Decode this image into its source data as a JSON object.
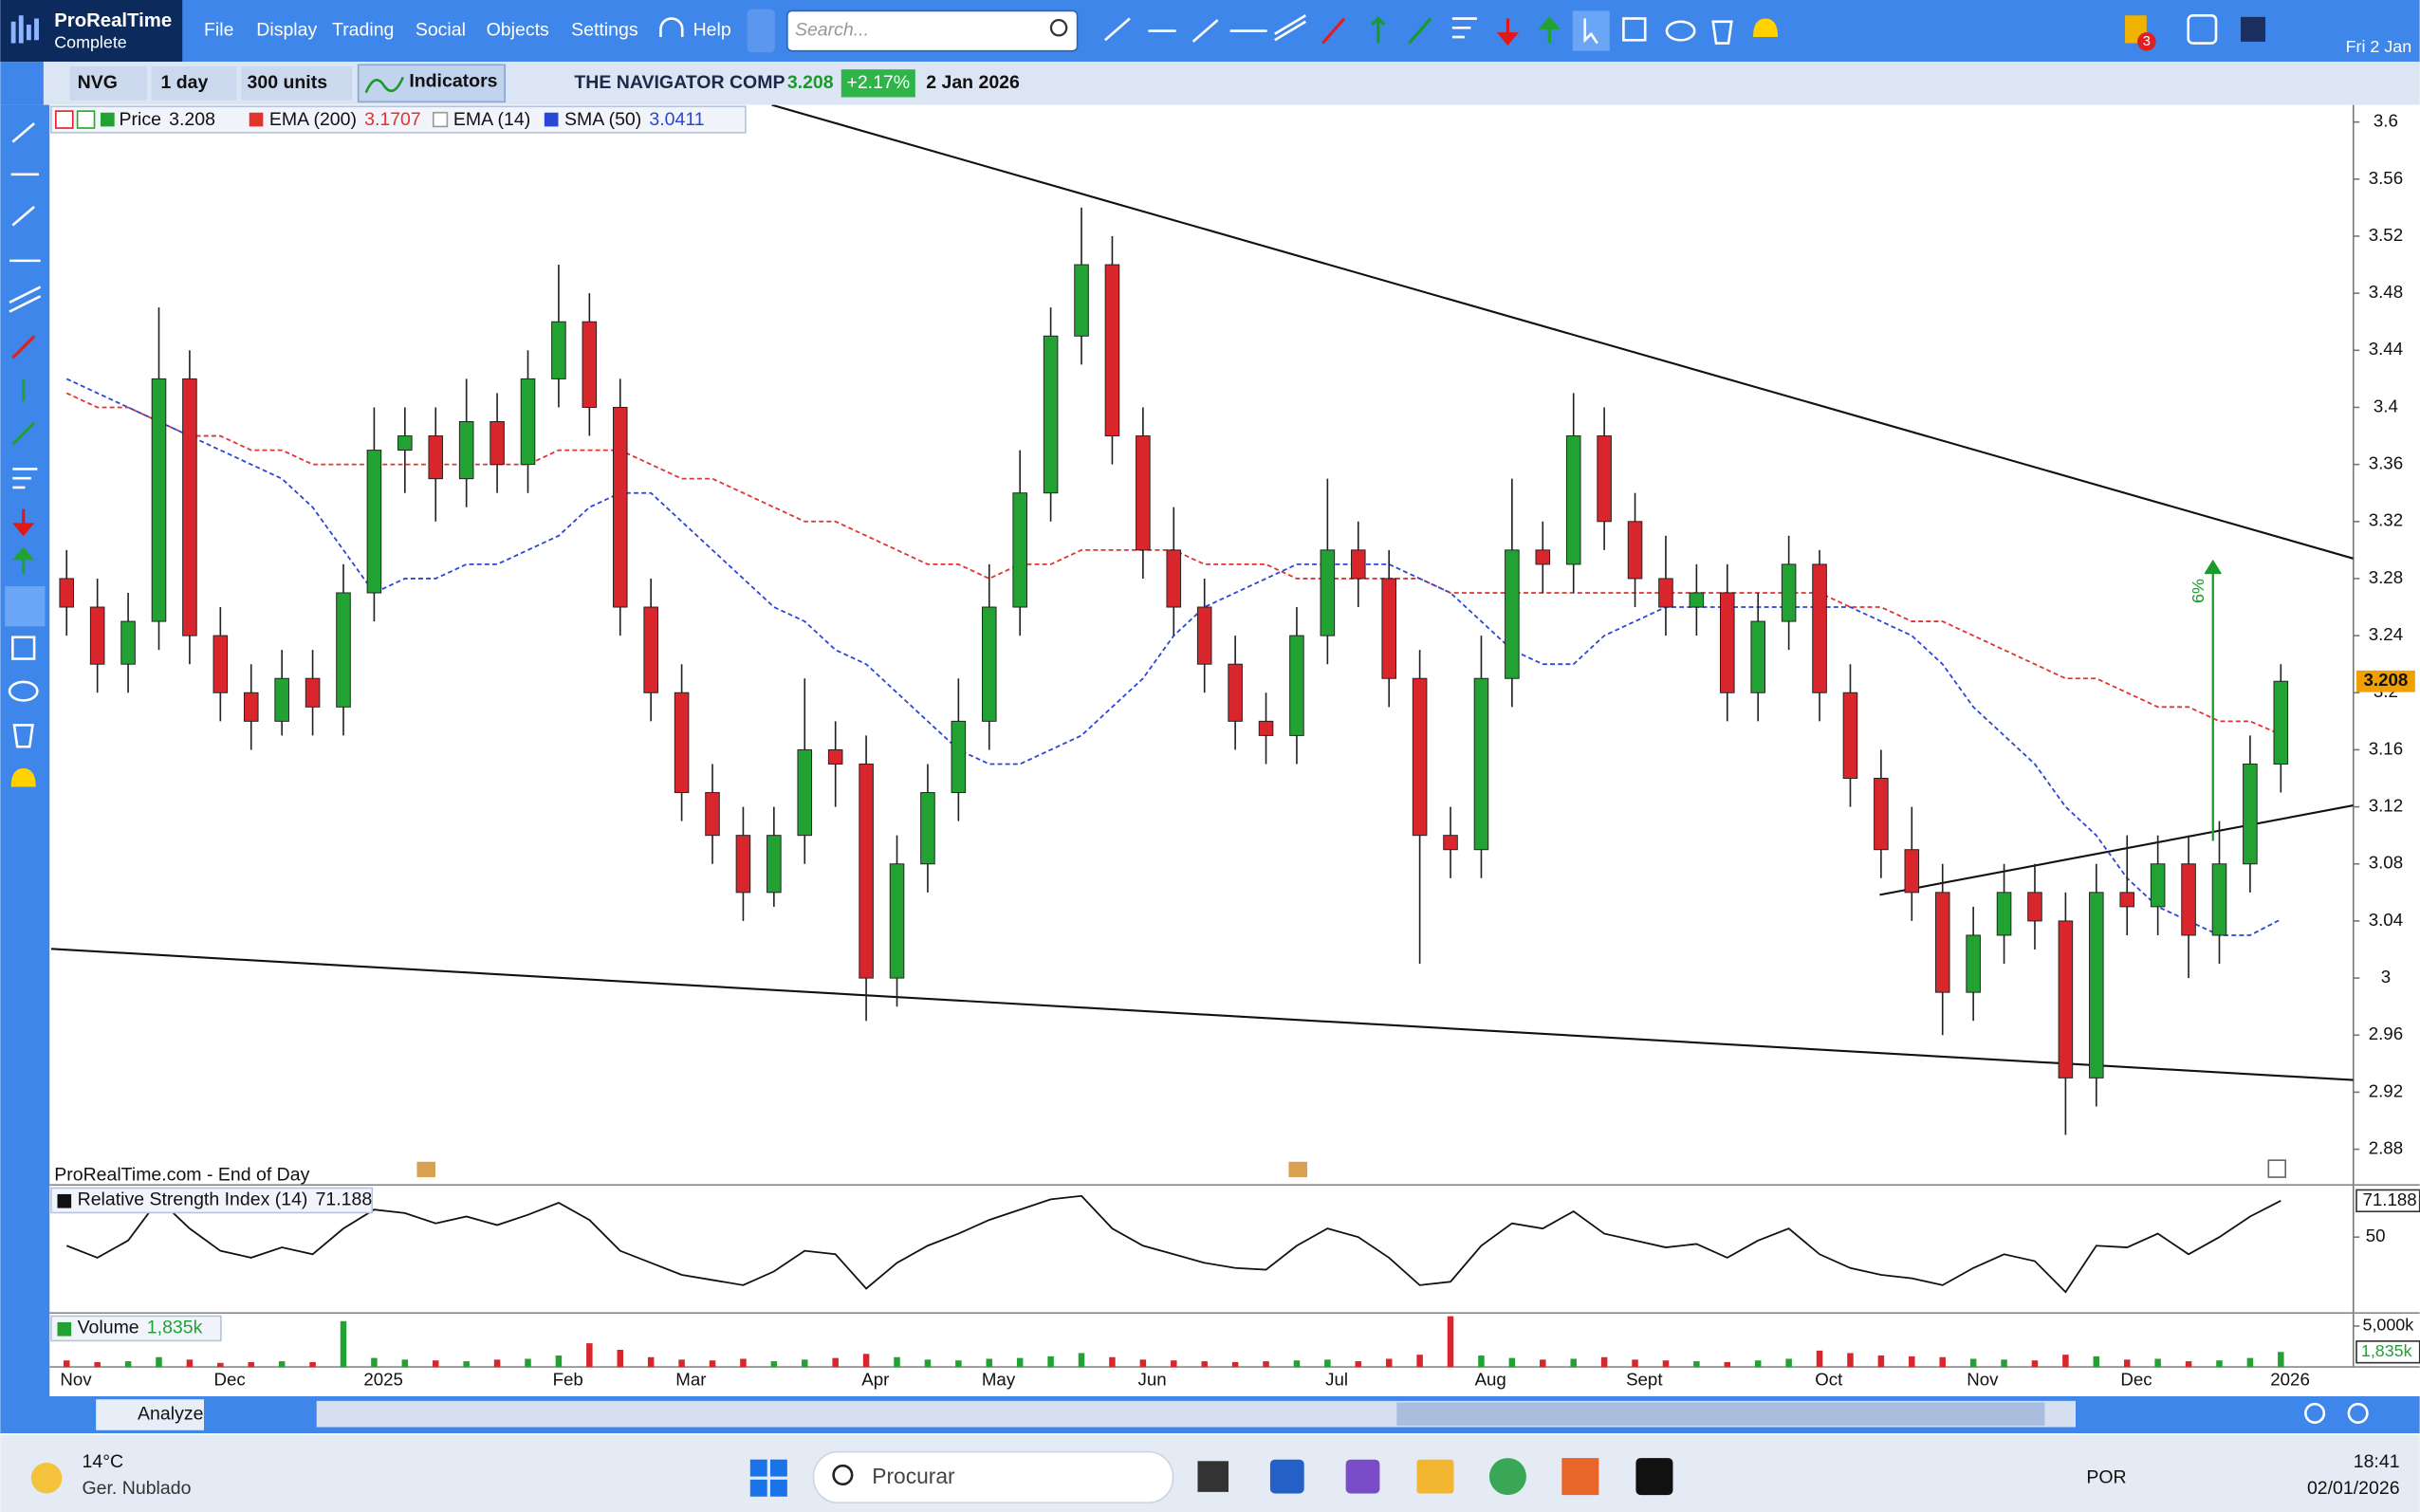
{
  "ui": {
    "logo": "ProRealTime",
    "edition": "Complete",
    "menu": [
      "File",
      "Display",
      "Trading",
      "Social",
      "Objects",
      "Settings",
      "Help"
    ],
    "search": "Search...",
    "date_short": "Fri 2 Jan",
    "alerts_badge": "3",
    "ticker": "NVG",
    "period": "1 day",
    "units": "300 units",
    "indicators": "Indicators",
    "change": "+2.17%",
    "date": "2 Jan 2026",
    "source": "ProRealTime.com - End of Day",
    "analyze": "Analyze",
    "taskbar": {
      "temp": "14°C",
      "weather": "Ger. Nublado",
      "search": "Procurar",
      "lang": "POR",
      "time": "18:41",
      "date": "02/01/2026"
    }
  },
  "chart_data": {
    "type": "candlestick",
    "title": "THE NAVIGATOR COMP",
    "price_label": "Price",
    "categories": [
      "Nov",
      null,
      null,
      null,
      null,
      "Dec",
      null,
      null,
      null,
      null,
      "2025",
      null,
      null,
      null,
      null,
      null,
      "Feb",
      null,
      null,
      null,
      "Mar",
      null,
      null,
      null,
      null,
      null,
      "Apr",
      null,
      null,
      null,
      "May",
      null,
      null,
      null,
      null,
      "Jun",
      null,
      null,
      null,
      null,
      null,
      "Jul",
      null,
      null,
      null,
      null,
      "Aug",
      null,
      null,
      null,
      null,
      "Sept",
      null,
      null,
      null,
      null,
      null,
      "Oct",
      null,
      null,
      null,
      null,
      "Nov",
      null,
      null,
      null,
      null,
      "Dec",
      null,
      null,
      null,
      null,
      "2026"
    ],
    "open": [
      3.28,
      3.26,
      3.22,
      3.25,
      3.42,
      3.24,
      3.2,
      3.18,
      3.21,
      3.19,
      3.27,
      3.37,
      3.38,
      3.35,
      3.39,
      3.36,
      3.42,
      3.46,
      3.4,
      3.26,
      3.2,
      3.13,
      3.1,
      3.06,
      3.1,
      3.16,
      3.15,
      3.0,
      3.08,
      3.13,
      3.18,
      3.26,
      3.34,
      3.45,
      3.5,
      3.38,
      3.3,
      3.26,
      3.22,
      3.18,
      3.17,
      3.24,
      3.3,
      3.28,
      3.21,
      3.1,
      3.09,
      3.21,
      3.3,
      3.29,
      3.38,
      3.32,
      3.28,
      3.26,
      3.27,
      3.2,
      3.25,
      3.29,
      3.2,
      3.14,
      3.09,
      3.06,
      2.99,
      3.03,
      3.06,
      3.04,
      2.93,
      3.06,
      3.05,
      3.08,
      3.03,
      3.08,
      3.15
    ],
    "high": [
      3.3,
      3.28,
      3.27,
      3.47,
      3.44,
      3.26,
      3.22,
      3.23,
      3.23,
      3.29,
      3.4,
      3.4,
      3.4,
      3.42,
      3.41,
      3.44,
      3.5,
      3.48,
      3.42,
      3.28,
      3.22,
      3.15,
      3.12,
      3.12,
      3.21,
      3.18,
      3.17,
      3.1,
      3.15,
      3.21,
      3.29,
      3.37,
      3.47,
      3.54,
      3.52,
      3.4,
      3.33,
      3.28,
      3.24,
      3.2,
      3.26,
      3.35,
      3.32,
      3.3,
      3.23,
      3.12,
      3.24,
      3.35,
      3.32,
      3.41,
      3.4,
      3.34,
      3.31,
      3.29,
      3.29,
      3.27,
      3.31,
      3.3,
      3.22,
      3.16,
      3.12,
      3.08,
      3.05,
      3.08,
      3.08,
      3.06,
      3.08,
      3.1,
      3.1,
      3.1,
      3.11,
      3.17,
      3.22
    ],
    "low": [
      3.24,
      3.2,
      3.2,
      3.23,
      3.22,
      3.18,
      3.16,
      3.17,
      3.17,
      3.17,
      3.25,
      3.34,
      3.32,
      3.33,
      3.34,
      3.34,
      3.4,
      3.38,
      3.24,
      3.18,
      3.11,
      3.08,
      3.04,
      3.05,
      3.08,
      3.12,
      2.97,
      2.98,
      3.06,
      3.11,
      3.16,
      3.24,
      3.32,
      3.43,
      3.36,
      3.28,
      3.24,
      3.2,
      3.16,
      3.15,
      3.15,
      3.22,
      3.26,
      3.19,
      3.01,
      3.07,
      3.07,
      3.19,
      3.27,
      3.27,
      3.3,
      3.26,
      3.24,
      3.24,
      3.18,
      3.18,
      3.23,
      3.18,
      3.12,
      3.07,
      3.04,
      2.96,
      2.97,
      3.01,
      3.02,
      2.89,
      2.91,
      3.03,
      3.03,
      3.0,
      3.01,
      3.06,
      3.13
    ],
    "close": [
      3.26,
      3.22,
      3.25,
      3.42,
      3.24,
      3.2,
      3.18,
      3.21,
      3.19,
      3.27,
      3.37,
      3.38,
      3.35,
      3.39,
      3.36,
      3.42,
      3.46,
      3.4,
      3.26,
      3.2,
      3.13,
      3.1,
      3.06,
      3.1,
      3.16,
      3.15,
      3.0,
      3.08,
      3.13,
      3.18,
      3.26,
      3.34,
      3.45,
      3.5,
      3.38,
      3.3,
      3.26,
      3.22,
      3.18,
      3.17,
      3.24,
      3.3,
      3.28,
      3.21,
      3.1,
      3.09,
      3.21,
      3.3,
      3.29,
      3.38,
      3.32,
      3.28,
      3.26,
      3.27,
      3.2,
      3.25,
      3.29,
      3.2,
      3.14,
      3.09,
      3.06,
      2.99,
      3.03,
      3.06,
      3.04,
      2.93,
      3.06,
      3.05,
      3.08,
      3.03,
      3.08,
      3.15,
      3.208
    ],
    "colors": {
      "up": "#22a232",
      "down": "#d8262c",
      "price": "#f2a000"
    },
    "ylim": [
      2.855,
      3.612
    ],
    "yticks": [
      3.6,
      3.56,
      3.52,
      3.48,
      3.44,
      3.4,
      3.36,
      3.32,
      3.28,
      3.24,
      3.2,
      3.16,
      3.12,
      3.08,
      3.04,
      3,
      2.96,
      2.92,
      2.88
    ],
    "grid": false,
    "overlays": [
      {
        "name": "EMA (200)",
        "color": "#e0342c",
        "values": [
          3.41,
          3.4,
          3.4,
          3.39,
          3.38,
          3.38,
          3.37,
          3.37,
          3.36,
          3.36,
          3.36,
          3.36,
          3.36,
          3.36,
          3.36,
          3.36,
          3.37,
          3.37,
          3.37,
          3.36,
          3.35,
          3.35,
          3.34,
          3.33,
          3.32,
          3.32,
          3.31,
          3.3,
          3.29,
          3.29,
          3.28,
          3.29,
          3.29,
          3.3,
          3.3,
          3.3,
          3.3,
          3.29,
          3.29,
          3.29,
          3.28,
          3.28,
          3.28,
          3.28,
          3.28,
          3.27,
          3.27,
          3.27,
          3.27,
          3.27,
          3.27,
          3.27,
          3.27,
          3.27,
          3.27,
          3.27,
          3.27,
          3.27,
          3.26,
          3.26,
          3.25,
          3.25,
          3.24,
          3.23,
          3.22,
          3.21,
          3.21,
          3.2,
          3.19,
          3.19,
          3.18,
          3.18,
          3.1707
        ]
      },
      {
        "name": "EMA (14)"
      },
      {
        "name": "SMA (50)",
        "color": "#2a46d6",
        "values": [
          3.42,
          3.41,
          3.4,
          3.39,
          3.38,
          3.37,
          3.36,
          3.35,
          3.33,
          3.3,
          3.27,
          3.28,
          3.28,
          3.29,
          3.29,
          3.3,
          3.31,
          3.33,
          3.34,
          3.34,
          3.32,
          3.3,
          3.28,
          3.26,
          3.25,
          3.23,
          3.22,
          3.2,
          3.18,
          3.16,
          3.15,
          3.15,
          3.16,
          3.17,
          3.19,
          3.21,
          3.24,
          3.26,
          3.27,
          3.28,
          3.29,
          3.29,
          3.29,
          3.29,
          3.28,
          3.27,
          3.25,
          3.23,
          3.22,
          3.22,
          3.24,
          3.25,
          3.26,
          3.26,
          3.26,
          3.26,
          3.26,
          3.26,
          3.26,
          3.25,
          3.24,
          3.22,
          3.19,
          3.17,
          3.15,
          3.12,
          3.1,
          3.07,
          3.05,
          3.04,
          3.03,
          3.03,
          3.0411
        ]
      }
    ],
    "annotation": "6%",
    "rsi": {
      "name": "Relative Strength Index (14)",
      "color": "#111111",
      "ylim": [
        5.8,
        79.5
      ],
      "yticks": [
        50
      ],
      "values": [
        45,
        38,
        48,
        72,
        55,
        42,
        38,
        44,
        40,
        55,
        66,
        64,
        58,
        62,
        57,
        63,
        70,
        60,
        42,
        35,
        28,
        25,
        22,
        30,
        42,
        40,
        20,
        35,
        45,
        52,
        60,
        66,
        72,
        74,
        55,
        45,
        40,
        35,
        32,
        31,
        45,
        55,
        50,
        38,
        22,
        24,
        45,
        58,
        55,
        65,
        52,
        48,
        44,
        46,
        38,
        48,
        55,
        40,
        32,
        28,
        26,
        22,
        32,
        40,
        36,
        18,
        45,
        44,
        52,
        40,
        50,
        62,
        71.188
      ]
    },
    "volume": {
      "name": "Volume",
      "ylim": [
        0,
        6600
      ],
      "yticks": [
        {
          "value": 5000,
          "label": "5,000k"
        }
      ],
      "values": [
        800,
        600,
        700,
        1200,
        900,
        500,
        600,
        700,
        600,
        5600,
        1100,
        900,
        800,
        700,
        900,
        1000,
        1400,
        2900,
        2100,
        1200,
        900,
        800,
        1000,
        700,
        900,
        1100,
        1600,
        1200,
        900,
        800,
        1000,
        1100,
        1300,
        1700,
        1200,
        900,
        800,
        700,
        600,
        700,
        800,
        900,
        700,
        1000,
        1500,
        6200,
        1400,
        1100,
        900,
        1000,
        1200,
        900,
        800,
        700,
        600,
        800,
        1000,
        2000,
        1700,
        1400,
        1300,
        1200,
        1000,
        900,
        800,
        1500,
        1300,
        900,
        1000,
        700,
        800,
        1100,
        1835
      ],
      "value_labels": [
        null,
        null,
        null,
        null,
        null,
        null,
        null,
        null,
        null,
        null,
        null,
        null,
        null,
        null,
        null,
        null,
        null,
        null,
        null,
        null,
        null,
        null,
        null,
        null,
        null,
        null,
        null,
        null,
        null,
        null,
        null,
        null,
        null,
        null,
        null,
        null,
        null,
        null,
        null,
        null,
        null,
        null,
        null,
        null,
        null,
        null,
        null,
        null,
        null,
        null,
        null,
        null,
        null,
        null,
        null,
        null,
        null,
        null,
        null,
        null,
        null,
        null,
        null,
        null,
        null,
        null,
        null,
        null,
        null,
        null,
        null,
        null,
        "1,835k"
      ]
    }
  }
}
